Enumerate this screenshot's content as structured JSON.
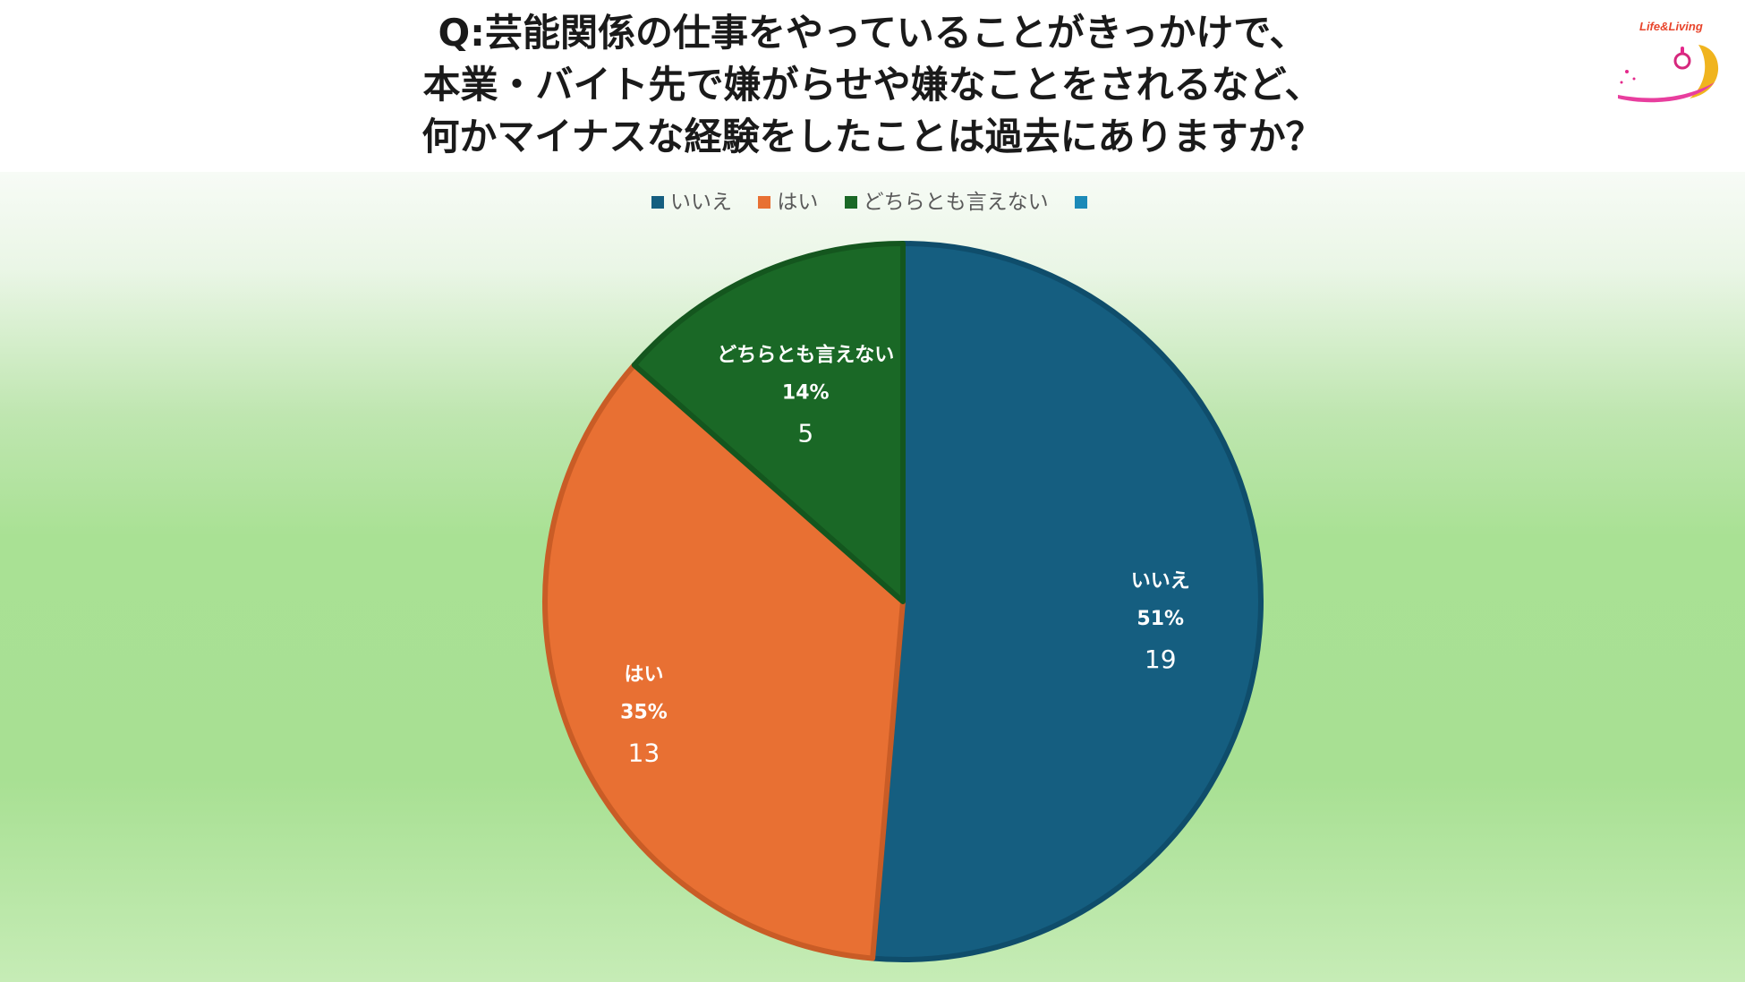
{
  "title_lines": [
    "Q:芸能関係の仕事をやっていることがきっかけで、",
    "本業・バイト先で嫌がらせや嫌なことをされるなど、",
    "何かマイナスな経験をしたことは過去にありますか？"
  ],
  "logo_text": "Life&Living",
  "colors": {
    "iie": "#155e80",
    "hai": "#e87033",
    "dochira": "#1a6826",
    "extra": "#1c8ab8"
  },
  "chart_data": {
    "type": "pie",
    "title": "Q:芸能関係の仕事をやっていることがきっかけで、本業・バイト先で嫌がらせや嫌なことをされるなど、何かマイナスな経験をしたことは過去にありますか？",
    "legend_position": "top",
    "legend": [
      "いいえ",
      "はい",
      "どちらとも言えない",
      ""
    ],
    "slices": [
      {
        "label": "いいえ",
        "value": 19,
        "percent": "51%"
      },
      {
        "label": "はい",
        "value": 13,
        "percent": "35%"
      },
      {
        "label": "どちらとも言えない",
        "value": 5,
        "percent": "14%"
      }
    ]
  }
}
